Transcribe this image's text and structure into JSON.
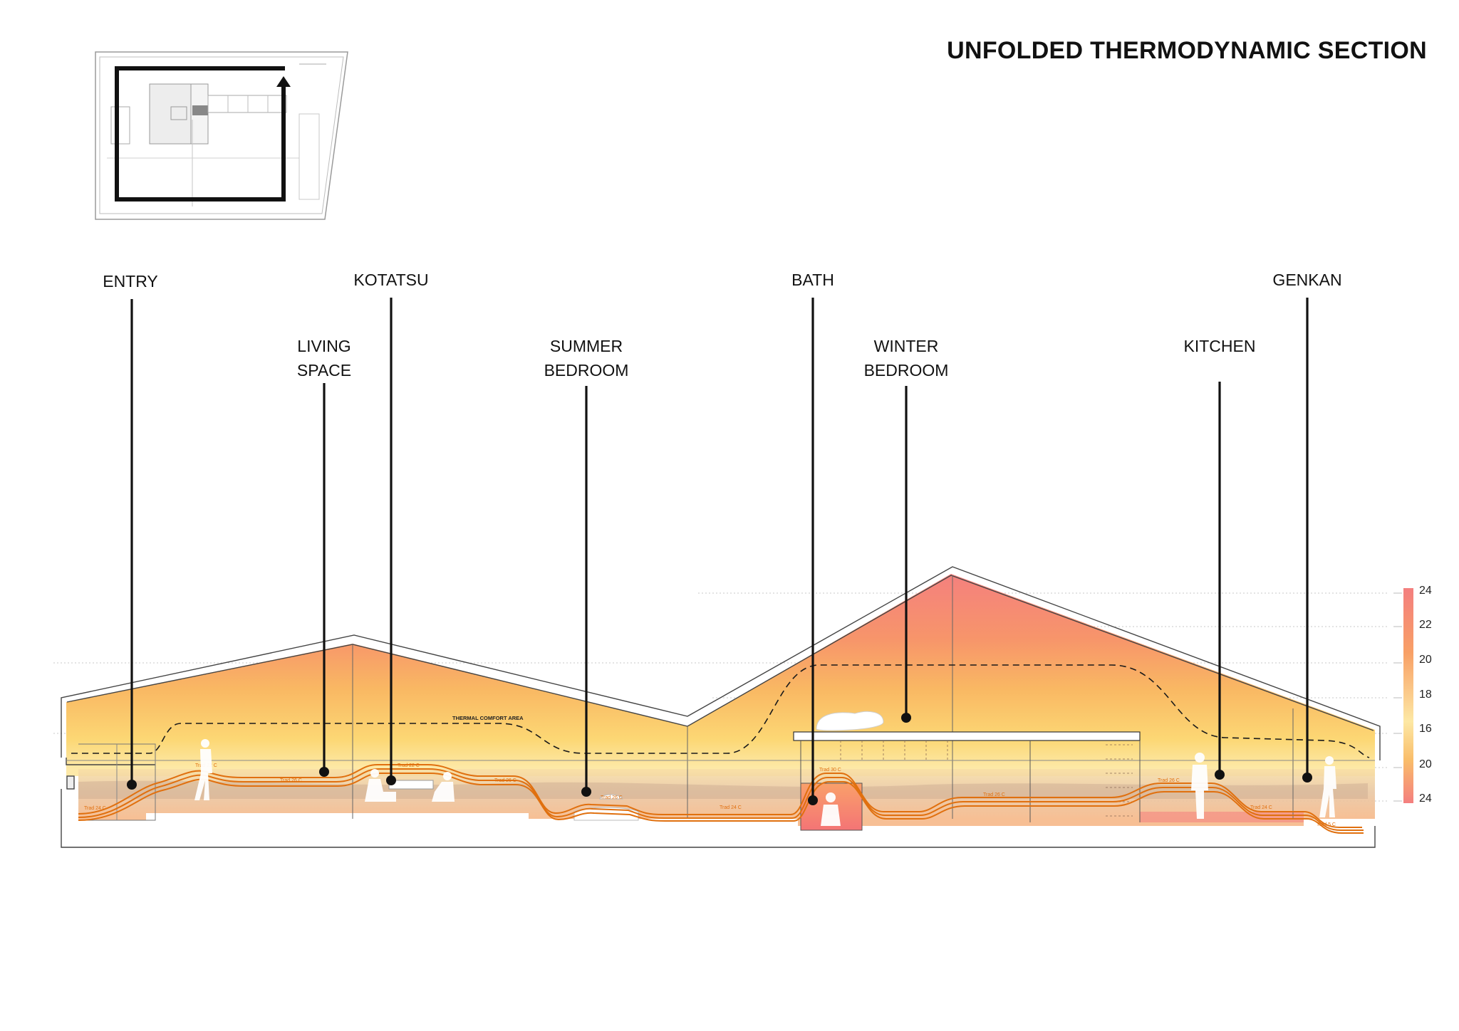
{
  "title": "UNFOLDED THERMODYNAMIC SECTION",
  "rooms": [
    {
      "key": "entry",
      "lines": [
        "ENTRY"
      ]
    },
    {
      "key": "kotatsu",
      "lines": [
        "KOTATSU"
      ]
    },
    {
      "key": "bath",
      "lines": [
        "BATH"
      ]
    },
    {
      "key": "genkan",
      "lines": [
        "GENKAN"
      ]
    },
    {
      "key": "living",
      "lines": [
        "LIVING",
        "SPACE"
      ]
    },
    {
      "key": "summer",
      "lines": [
        "SUMMER",
        "BEDROOM"
      ]
    },
    {
      "key": "winter",
      "lines": [
        "WINTER",
        "BEDROOM"
      ]
    },
    {
      "key": "kitchen",
      "lines": [
        "KITCHEN"
      ]
    }
  ],
  "section": {
    "comfort_label": "THERMAL COMFORT AREA",
    "trad_labels": [
      "Trad 24 C",
      "Trad 22 C",
      "Trad 26 C",
      "Trad 26 C",
      "Trad 22 C",
      "Trad 26 C",
      "Trad 24 C",
      "Trad 30 C",
      "Trad 26 C",
      "Trad 26 C",
      "Trad 24 C",
      "Trad 5 C"
    ]
  },
  "temperature_scale": {
    "labels": [
      "24",
      "22",
      "20",
      "18",
      "16",
      "20",
      "24"
    ],
    "colors": {
      "warm": "#f47f7f",
      "mid": "#f8a35c",
      "cool": "#fbd26a",
      "pale": "#fde8a4"
    }
  },
  "colors": {
    "line": "#e0700f",
    "ink": "#111111"
  }
}
